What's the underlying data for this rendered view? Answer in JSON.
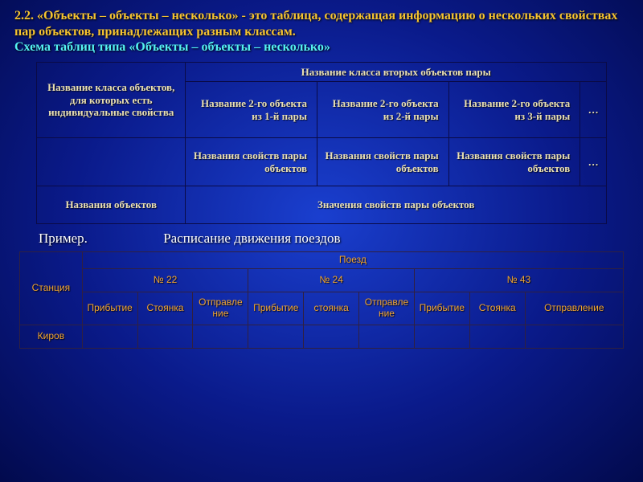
{
  "heading": {
    "line1a": "2.2. «Объекты – объекты – несколько» - ",
    "line1b": "это таблица, содержащая информацию о нескольких свойствах пар объектов, принадлежащих разным классам.",
    "line2": "Схема таблиц типа «Объекты – объекты – несколько»"
  },
  "schema": {
    "col0": "Название класса объектов, для которых есть индивидуальные свойства",
    "header_top": "Название класса вторых объектов пары",
    "h1": "Название 2-го объекта из 1-й пары",
    "h2": "Название 2-го объекта из 2-й пары",
    "h3": "Название 2-го объекта из 3-й пары",
    "dots": "…",
    "prop1": "Названия свойств пары объектов",
    "prop2": "Названия свойств пары объектов",
    "prop3a": "Названия свойств пары ",
    "prop3b": "объектов",
    "row4_left": "Названия объектов",
    "row4_right": "Значения свойств пары объектов"
  },
  "example": {
    "label": "Пример.",
    "title": "Расписание движения поездов"
  },
  "sched": {
    "station": "Станция",
    "train": "Поезд",
    "nums": [
      "№ 22",
      "№ 24",
      "№ 43"
    ],
    "sub": {
      "prib": "Прибытие",
      "stoy": "Стоянка",
      "stoy_lc": "стоянка",
      "otprav": "Отправление",
      "otprav_full": "Отправление"
    },
    "rows": [
      {
        "station": "Киров"
      }
    ]
  }
}
